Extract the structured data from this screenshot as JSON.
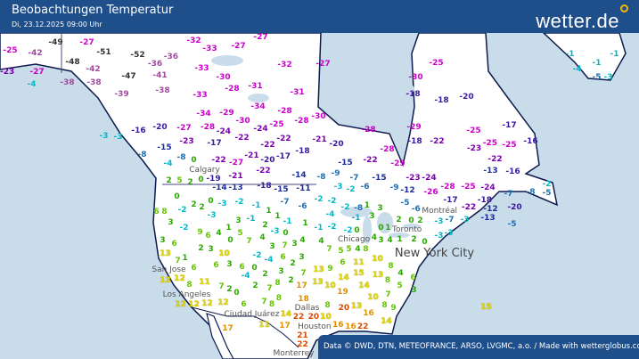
{
  "header": {
    "title": "Beobachtungen Temperatur",
    "datetime": "Di, 23.12.2025 09:00 Uhr",
    "logo": "wetter.de"
  },
  "footer": {
    "credit": "Data © DWD, DTN, METEOFRANCE, ARSO, LVGMC, a.o. / Made with wetterglobus.com"
  },
  "units": "°C",
  "colors": {
    "header": "#1f4f8b",
    "water": "#c9dcea",
    "land": "#ffffff",
    "coast": "#0d1a4d"
  },
  "cities": [
    "Calgary",
    "San Jose",
    "Los Angeles",
    "Ciudad Juárez",
    "Dallas",
    "Houston",
    "Monterrey",
    "Chicago",
    "Toronto",
    "Montréal",
    "New York City"
  ],
  "temperatures": [
    -49,
    -27,
    -25,
    -42,
    -51,
    -52,
    -48,
    -36,
    -36,
    -42,
    -47,
    -41,
    -23,
    -27,
    -4,
    -38,
    -38,
    -39,
    -38,
    -32,
    -33,
    -27,
    -27,
    -33,
    -30,
    -28,
    -31,
    -32,
    -31,
    -33,
    -34,
    -29,
    -30,
    -34,
    -28,
    -24,
    -25,
    -28,
    -20,
    -27,
    -28,
    -24,
    -22,
    -22,
    -22,
    -16,
    -23,
    -17,
    -15,
    -18,
    -21,
    -20,
    -17,
    -8,
    -4,
    -8,
    0,
    -22,
    -27,
    -22,
    -14,
    -3,
    -3,
    2,
    5,
    2,
    0,
    -19,
    -21,
    -14,
    -13,
    -18,
    -15,
    -11,
    0,
    -2,
    2,
    2,
    0,
    -3,
    -2,
    -1,
    -7,
    -6,
    6,
    8,
    -3,
    3,
    -2,
    9,
    6,
    4,
    1,
    5,
    3,
    -1,
    1,
    1,
    2,
    -3,
    0,
    -1,
    1,
    3,
    6,
    2,
    3,
    10,
    0,
    7,
    4,
    3,
    7,
    3,
    4,
    13,
    7,
    1,
    6,
    6,
    3,
    6,
    -2,
    -4,
    6,
    2,
    3,
    0,
    -4,
    2,
    3,
    7,
    13,
    12,
    11,
    7,
    2,
    0,
    8,
    2,
    7,
    8,
    2,
    17,
    12,
    12,
    12,
    12,
    6,
    7,
    8,
    8,
    14,
    11,
    17,
    17,
    22,
    20,
    22,
    21,
    18,
    -27,
    -30,
    -25,
    -30,
    -18,
    -18,
    -20,
    -29,
    -18,
    -22,
    -25,
    -23,
    -25,
    -25,
    -17,
    -16,
    -21,
    -20,
    -28,
    -28,
    -15,
    -22,
    -29,
    -23,
    -24,
    -13,
    -16,
    -22,
    -15,
    -9,
    -8,
    -7,
    -12,
    -9,
    -6,
    -26,
    -28,
    -25,
    -24,
    -3,
    -2,
    -2,
    -2,
    -2,
    -4,
    1,
    3,
    -1,
    3,
    -1,
    -2,
    -2,
    0,
    4,
    3,
    4,
    0,
    1,
    2,
    0,
    2,
    2,
    1,
    0,
    4,
    7,
    5,
    5,
    4,
    8,
    10,
    11,
    6,
    9,
    13,
    8,
    14,
    15,
    13,
    8,
    4,
    6,
    13,
    10,
    19,
    14,
    5,
    3,
    10,
    7,
    8,
    9,
    8,
    20,
    13,
    16,
    14,
    10,
    16,
    16,
    22,
    15,
    -8,
    -5,
    -6,
    -3,
    -7,
    -22,
    -17,
    -18,
    -3,
    -3,
    -3,
    -5,
    -20,
    -7,
    -8,
    -2,
    -5,
    -12,
    -13,
    -1,
    -1,
    -4,
    -5,
    -3,
    -1
  ]
}
